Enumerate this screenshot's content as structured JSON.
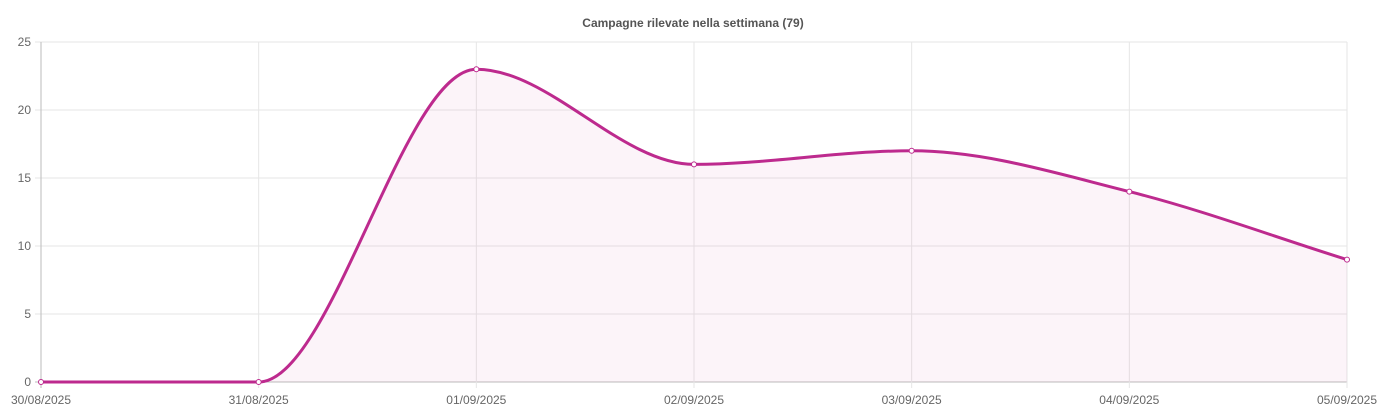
{
  "chart_data": {
    "type": "area",
    "title": "Campagne rilevate nella settimana (79)",
    "xlabel": "",
    "ylabel": "",
    "categories": [
      "30/08/2025",
      "31/08/2025",
      "01/09/2025",
      "02/09/2025",
      "03/09/2025",
      "04/09/2025",
      "05/09/2025"
    ],
    "series": [
      {
        "values": [
          0,
          0,
          23,
          16,
          17,
          14,
          9
        ]
      }
    ],
    "ylim": [
      0,
      25
    ],
    "yticks": [
      "0",
      "5",
      "10",
      "15",
      "20",
      "25"
    ],
    "grid": true,
    "legend": "none",
    "colors": {
      "line": "#bd2a8e",
      "fill": "#bd2a8e",
      "point": "#bd2a8e"
    }
  }
}
